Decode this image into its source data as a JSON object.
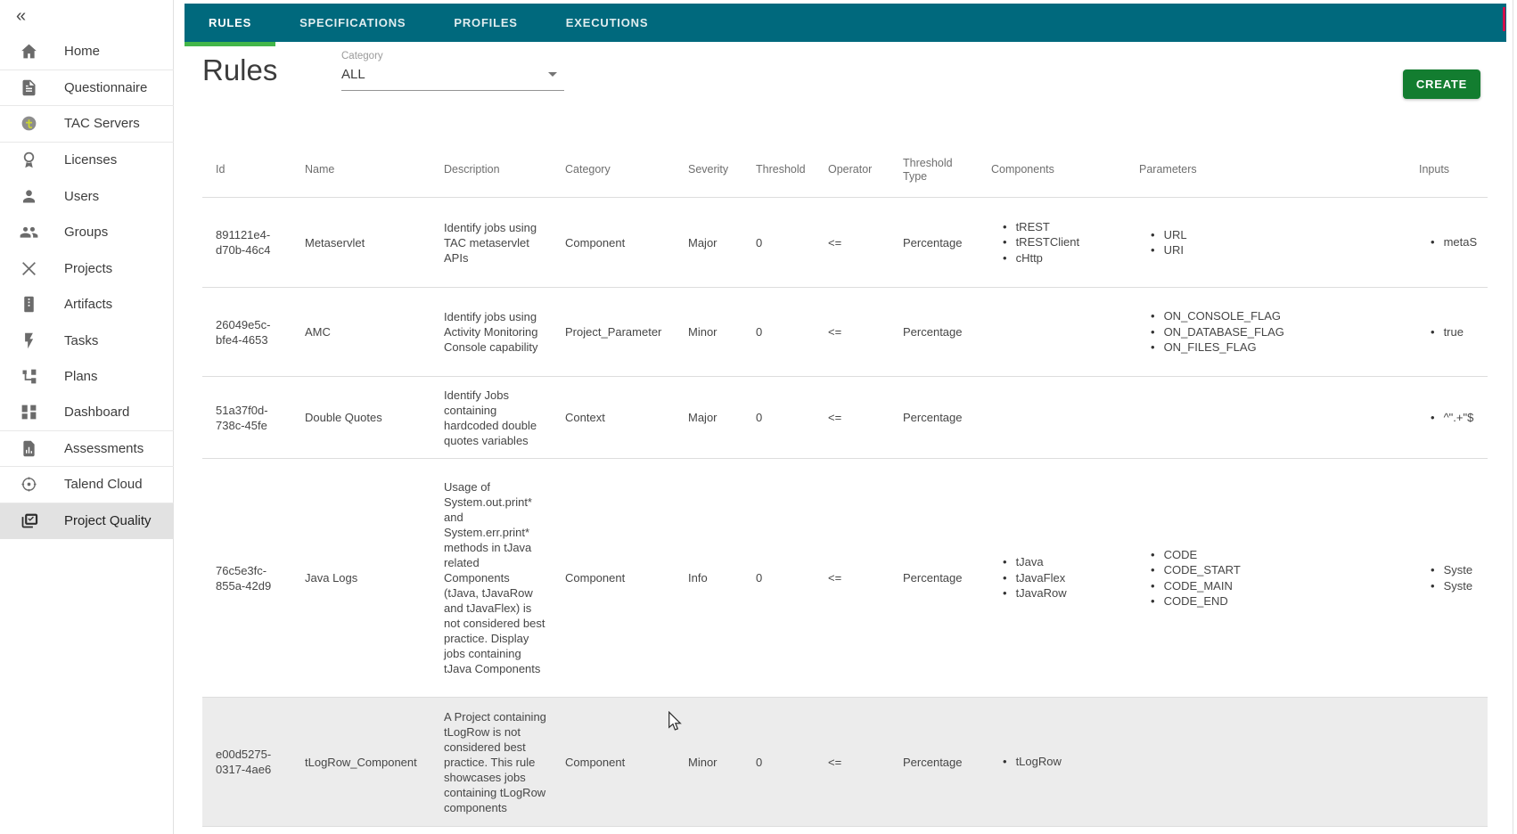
{
  "sidebar": {
    "collapse_icon": "«",
    "items": [
      {
        "label": "Home",
        "icon": "home-icon",
        "divider_after": true,
        "selected": false
      },
      {
        "label": "Questionnaire",
        "icon": "questionnaire-icon",
        "divider_after": true,
        "selected": false
      },
      {
        "label": "TAC Servers",
        "icon": "tac-servers-icon",
        "divider_after": true,
        "selected": false
      },
      {
        "label": "Licenses",
        "icon": "licenses-icon",
        "divider_after": false,
        "selected": false
      },
      {
        "label": "Users",
        "icon": "user-icon",
        "divider_after": false,
        "selected": false
      },
      {
        "label": "Groups",
        "icon": "groups-icon",
        "divider_after": false,
        "selected": false
      },
      {
        "label": "Projects",
        "icon": "projects-icon",
        "divider_after": false,
        "selected": false
      },
      {
        "label": "Artifacts",
        "icon": "artifacts-icon",
        "divider_after": false,
        "selected": false
      },
      {
        "label": "Tasks",
        "icon": "tasks-icon",
        "divider_after": false,
        "selected": false
      },
      {
        "label": "Plans",
        "icon": "plans-icon",
        "divider_after": false,
        "selected": false
      },
      {
        "label": "Dashboard",
        "icon": "dashboard-icon",
        "divider_after": true,
        "selected": false
      },
      {
        "label": "Assessments",
        "icon": "assessments-icon",
        "divider_after": true,
        "selected": false
      },
      {
        "label": "Talend Cloud",
        "icon": "talend-cloud-icon",
        "divider_after": true,
        "selected": false
      },
      {
        "label": "Project Quality",
        "icon": "project-quality-icon",
        "divider_after": false,
        "selected": true
      }
    ]
  },
  "tabs": {
    "active": "RULES",
    "items": [
      "RULES",
      "SPECIFICATIONS",
      "PROFILES",
      "EXECUTIONS"
    ]
  },
  "page": {
    "title": "Rules"
  },
  "filter": {
    "label": "Category",
    "value": "ALL"
  },
  "actions": {
    "create_label": "CREATE"
  },
  "table": {
    "columns": [
      "Id",
      "Name",
      "Description",
      "Category",
      "Severity",
      "Threshold",
      "Operator",
      "Threshold Type",
      "Components",
      "Parameters",
      "Inputs"
    ],
    "rows": [
      {
        "id": "891121e4-d70b-46c4",
        "name": "Metaservlet",
        "description": "Identify jobs using TAC metaservlet APIs",
        "category": "Component",
        "severity": "Major",
        "threshold": "0",
        "operator": "<=",
        "threshold_type": "Percentage",
        "components": [
          "tREST",
          "tRESTClient",
          "cHttp"
        ],
        "parameters": [
          "URL",
          "URI"
        ],
        "inputs": [
          "metaS"
        ],
        "highlighted": false
      },
      {
        "id": "26049e5c-bfe4-4653",
        "name": "AMC",
        "description": "Identify jobs using Activity Monitoring Console capability",
        "category": "Project_Parameter",
        "severity": "Minor",
        "threshold": "0",
        "operator": "<=",
        "threshold_type": "Percentage",
        "components": [],
        "parameters": [
          "ON_CONSOLE_FLAG",
          "ON_DATABASE_FLAG",
          "ON_FILES_FLAG"
        ],
        "inputs": [
          "true"
        ],
        "highlighted": false
      },
      {
        "id": "51a37f0d-738c-45fe",
        "name": "Double Quotes",
        "description": "Identify Jobs containing hardcoded double quotes variables",
        "category": "Context",
        "severity": "Major",
        "threshold": "0",
        "operator": "<=",
        "threshold_type": "Percentage",
        "components": [],
        "parameters": [],
        "inputs": [
          "^\".+\"$"
        ],
        "highlighted": false
      },
      {
        "id": "76c5e3fc-855a-42d9",
        "name": "Java Logs",
        "description": "Usage of System.out.print* and System.err.print* methods in tJava related Components (tJava, tJavaRow and tJavaFlex) is not considered best practice. Display jobs containing tJava Components",
        "category": "Component",
        "severity": "Info",
        "threshold": "0",
        "operator": "<=",
        "threshold_type": "Percentage",
        "components": [
          "tJava",
          "tJavaFlex",
          "tJavaRow"
        ],
        "parameters": [
          "CODE",
          "CODE_START",
          "CODE_MAIN",
          "CODE_END"
        ],
        "inputs": [
          "Syste",
          "Syste"
        ],
        "highlighted": false
      },
      {
        "id": "e00d5275-0317-4ae6",
        "name": "tLogRow_Component",
        "description": "A Project containing tLogRow is not considered best practice. This rule showcases jobs containing tLogRow components",
        "category": "Component",
        "severity": "Minor",
        "threshold": "0",
        "operator": "<=",
        "threshold_type": "Percentage",
        "components": [
          "tLogRow"
        ],
        "parameters": [],
        "inputs": [],
        "highlighted": true
      }
    ]
  },
  "colors": {
    "tab_bar": "#00697d",
    "tab_indicator": "#43b649",
    "create_button": "#137d30",
    "row_highlight": "#ececec",
    "sidebar_selected": "#e2e2e2",
    "accent_sliver": "#d0104c"
  }
}
